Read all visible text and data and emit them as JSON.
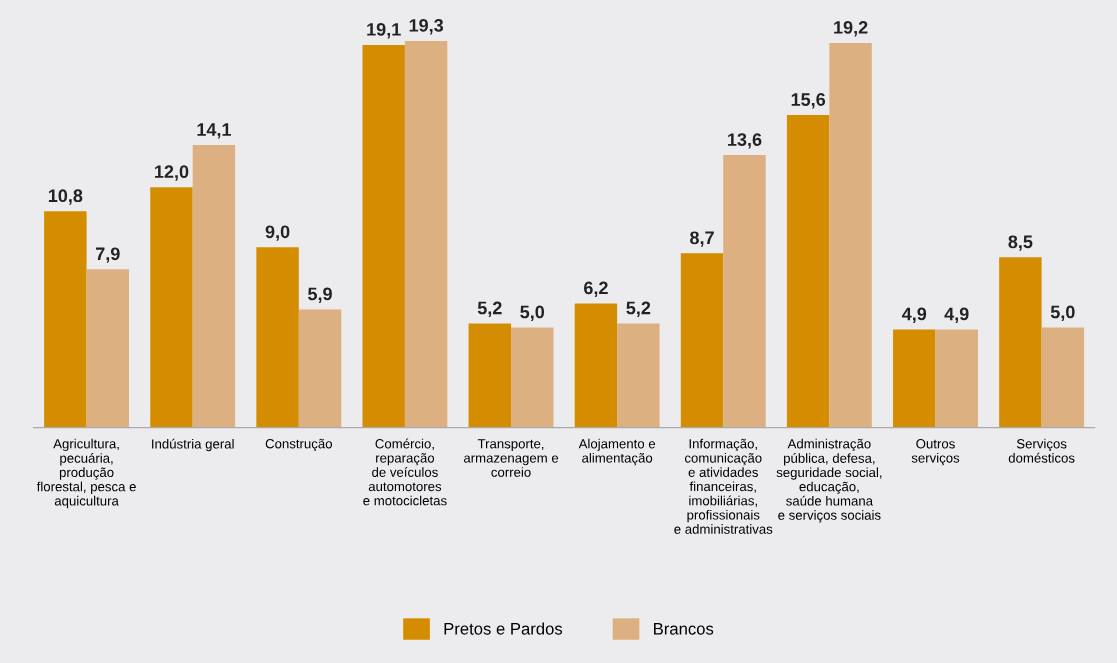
{
  "chart_data": {
    "type": "bar",
    "categories": [
      "Agricultura,\npecuária,\nprodução\nflorestal, pesca e\naquicultura",
      "Indústria geral",
      "Construção",
      "Comércio,\nreparação\nde veículos\nautomotores\ne motocicletas",
      "Transporte,\narmazenagem e\ncorreio",
      "Alojamento e\nalimentação",
      "Informação,\ncomunicação\ne atividades\nfinanceiras,\nimobiliárias,\nprofissionais\ne administrativas",
      "Administração\npública, defesa,\nseguridade social,\neducação,\nsaúde humana\ne serviços sociais",
      "Outros\nserviços",
      "Serviços\ndomésticos"
    ],
    "series": [
      {
        "name": "Pretos e Pardos",
        "color": "#d48c00",
        "values": [
          10.8,
          12.0,
          9.0,
          19.1,
          5.2,
          6.2,
          8.7,
          15.6,
          4.9,
          8.5
        ],
        "value_labels": [
          "10,8",
          "12,0",
          "9,0",
          "19,1",
          "5,2",
          "6,2",
          "8,7",
          "15,6",
          "4,9",
          "8,5"
        ]
      },
      {
        "name": "Brancos",
        "color": "#dcb080",
        "values": [
          7.9,
          14.1,
          5.9,
          19.3,
          5.0,
          5.2,
          13.6,
          19.2,
          4.9,
          5.0
        ],
        "value_labels": [
          "7,9",
          "14,1",
          "5,9",
          "19,3",
          "5,0",
          "5,2",
          "13,6",
          "19,2",
          "4,9",
          "5,0"
        ]
      }
    ],
    "grid": false,
    "legend": "bottom"
  }
}
